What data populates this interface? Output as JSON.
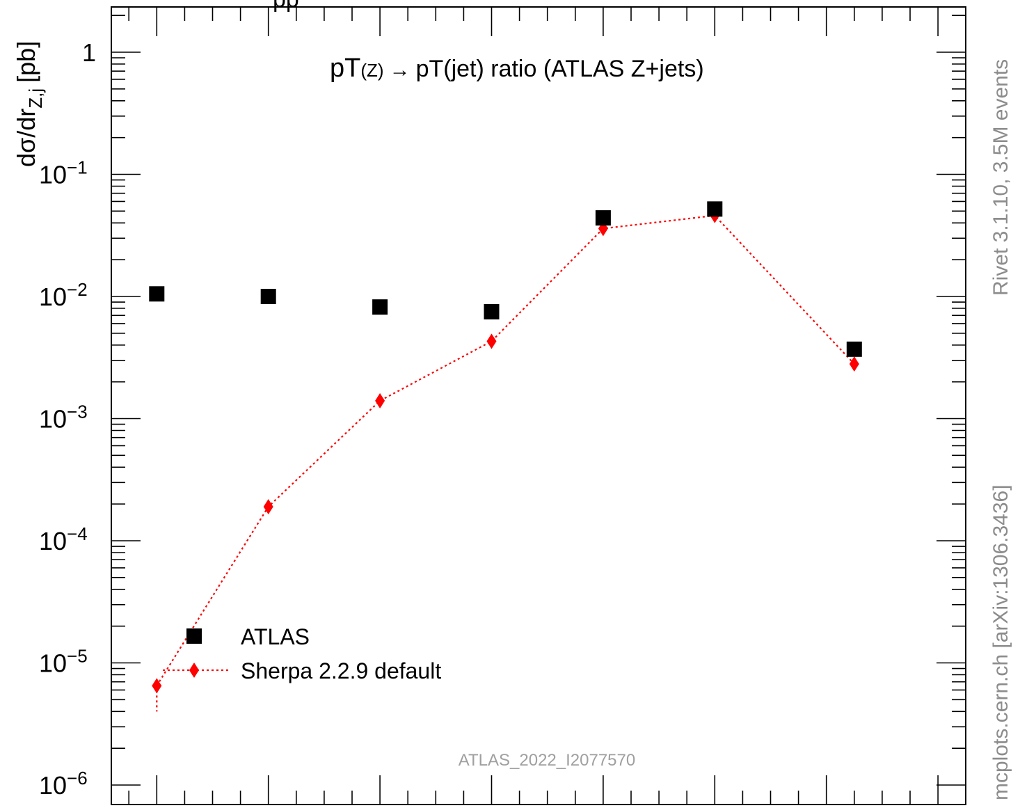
{
  "chart_data": {
    "type": "scatter",
    "title_main": "pT",
    "title_paren": "(Z)",
    "title_arrow": "→",
    "title_rest": "pT(jet) ratio (ATLAS Z+jets)",
    "ylabel_main": "dσ/dr",
    "ylabel_sub": "Z,j",
    "ylabel_unit": "[pb]",
    "top_fragment": "pp",
    "yscale": "log",
    "ylim": [
      1e-06,
      3
    ],
    "xlim": [
      0,
      15
    ],
    "y_ticks": [
      {
        "value": 1,
        "base": "1",
        "exp": ""
      },
      {
        "value": 0.1,
        "base": "10",
        "exp": "−1"
      },
      {
        "value": 0.01,
        "base": "10",
        "exp": "−2"
      },
      {
        "value": 0.001,
        "base": "10",
        "exp": "−3"
      },
      {
        "value": 0.0001,
        "base": "10",
        "exp": "−4"
      },
      {
        "value": 1e-05,
        "base": "10",
        "exp": "−5"
      },
      {
        "value": 1e-06,
        "base": "10",
        "exp": "−6"
      }
    ],
    "series": [
      {
        "name": "ATLAS",
        "marker": "square",
        "color": "#000000",
        "x": [
          1.5,
          3.5,
          5.5,
          7.5,
          9.5,
          11.5,
          14.0
        ],
        "y": [
          0.0105,
          0.01,
          0.0082,
          0.0075,
          0.044,
          0.052,
          0.0037
        ]
      },
      {
        "name": "Sherpa 2.2.9 default",
        "marker": "diamond",
        "color": "#ff0000",
        "line": "dotted",
        "x": [
          1.5,
          3.5,
          5.5,
          7.5,
          9.5,
          11.5,
          14.0
        ],
        "y": [
          6.5e-06,
          0.00019,
          0.0014,
          0.0043,
          0.036,
          0.046,
          0.0028
        ],
        "first_point_err_low": 4e-06
      }
    ],
    "legend_position": "bottom-left",
    "watermark": "ATLAS_2022_I2077570",
    "side_label_top": "Rivet 3.1.10,  3.5M events",
    "side_label_bottom": "mcplots.cern.ch [arXiv:1306.3436]"
  }
}
